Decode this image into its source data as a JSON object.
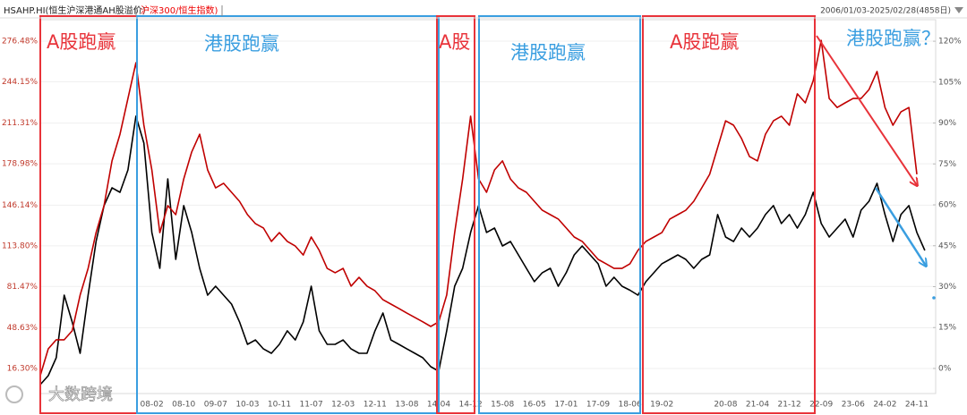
{
  "chart_data": {
    "type": "line",
    "date_range": "2006/01/03-2025/02/28(4858日)",
    "categories": [
      null,
      null,
      null,
      null,
      null,
      null,
      null,
      null,
      null,
      null,
      null,
      null,
      null,
      null,
      "08-02",
      null,
      null,
      null,
      "08-10",
      null,
      null,
      null,
      "09-07",
      null,
      null,
      null,
      "10-03",
      null,
      null,
      null,
      "10-11",
      null,
      null,
      null,
      "11-07",
      null,
      null,
      null,
      "12-03",
      null,
      null,
      null,
      "12-11",
      null,
      null,
      null,
      "13-08",
      null,
      null,
      null,
      "14-04",
      null,
      null,
      null,
      "14-12",
      null,
      null,
      null,
      "15-08",
      null,
      null,
      null,
      "16-05",
      null,
      null,
      null,
      "17-01",
      null,
      null,
      null,
      "17-09",
      null,
      null,
      null,
      "18-06",
      null,
      null,
      null,
      "19-02",
      null,
      null,
      null,
      null,
      null,
      null,
      null,
      "20-08",
      null,
      null,
      null,
      "21-04",
      null,
      null,
      null,
      "21-12",
      null,
      null,
      null,
      "22-09",
      null,
      null,
      null,
      "23-06",
      null,
      null,
      null,
      "24-02",
      null,
      null,
      null,
      "24-11",
      null
    ],
    "series": [
      {
        "name": "HSAHP.HI(恒生沪深港通AH股溢价)",
        "color": "#000000",
        "values": [
          3.5,
          10.6,
          24.8,
          74.6,
          53.3,
          28.4,
          74.6,
          117.2,
          145.7,
          159.9,
          156.3,
          174.1,
          216.8,
          195.4,
          124.4,
          95.9,
          167.0,
          103.0,
          145.7,
          124.4,
          95.9,
          74.6,
          81.7,
          74.6,
          67.5,
          53.3,
          35.5,
          39.0,
          31.9,
          28.4,
          35.5,
          46.2,
          39.0,
          53.3,
          81.7,
          46.2,
          35.5,
          35.5,
          39.0,
          31.9,
          28.4,
          28.4,
          46.2,
          60.4,
          39.0,
          35.5,
          31.9,
          28.4,
          24.8,
          17.7,
          14.2,
          46.2,
          81.7,
          95.9,
          124.4,
          145.7,
          124.4,
          127.9,
          113.7,
          117.2,
          106.6,
          95.9,
          85.3,
          92.4,
          95.9,
          81.7,
          92.4,
          106.6,
          113.7,
          106.6,
          99.5,
          81.7,
          88.8,
          81.7,
          78.5,
          74.6,
          85.3,
          92.4,
          99.5,
          103.0,
          106.6,
          103.0,
          95.9,
          103.0,
          106.6,
          138.6,
          120.8,
          117.2,
          127.9,
          120.8,
          127.9,
          138.6,
          145.7,
          131.5,
          138.6,
          127.9,
          138.6,
          156.3,
          131.5,
          120.8,
          127.9,
          135.0,
          120.8,
          142.1,
          149.2,
          163.5,
          138.6,
          117.2,
          138.6,
          145.7,
          124.4,
          110.1
        ]
      },
      {
        "name": "沪深300/恒生指数)",
        "color": "#c00000",
        "axis": "y2",
        "values": [
          -2.6,
          7.2,
          10.5,
          10.5,
          13.8,
          26.9,
          36.7,
          49.8,
          59.7,
          76.1,
          85.9,
          99.0,
          112.1,
          89.2,
          72.8,
          49.8,
          59.7,
          56.4,
          69.5,
          79.4,
          85.9,
          72.8,
          66.2,
          67.9,
          64.6,
          61.3,
          56.4,
          53.1,
          51.5,
          46.6,
          49.8,
          46.6,
          44.9,
          41.6,
          48.2,
          43.3,
          36.7,
          35.1,
          36.7,
          30.2,
          33.4,
          30.2,
          28.5,
          25.2,
          23.6,
          22.0,
          20.3,
          18.7,
          17.1,
          15.4,
          17.1,
          26.9,
          49.8,
          69.5,
          92.5,
          69.5,
          64.6,
          72.8,
          76.1,
          69.5,
          66.2,
          64.6,
          61.3,
          58.0,
          56.4,
          54.8,
          51.5,
          48.2,
          46.6,
          43.3,
          40.0,
          38.4,
          36.7,
          36.7,
          38.4,
          43.3,
          46.6,
          48.2,
          49.8,
          54.8,
          56.4,
          58.0,
          61.3,
          66.2,
          71.2,
          81.0,
          90.8,
          89.2,
          84.3,
          77.7,
          76.1,
          85.9,
          90.8,
          92.5,
          89.2,
          100.7,
          97.4,
          105.6,
          120.3,
          99.0,
          95.7,
          97.4,
          99.0,
          99.0,
          102.3,
          108.9,
          95.7,
          89.2,
          94.1,
          95.7,
          71.2,
          null
        ]
      }
    ],
    "ylim": [
      -3.6,
      293.5
    ],
    "yticks": [
      {
        "value": 276.48,
        "label": "276.48%"
      },
      {
        "value": 244.15,
        "label": "244.15%"
      },
      {
        "value": 211.31,
        "label": "211.31%"
      },
      {
        "value": 178.98,
        "label": "178.98%"
      },
      {
        "value": 146.14,
        "label": "146.14%"
      },
      {
        "value": 113.8,
        "label": "113.80%"
      },
      {
        "value": 81.47,
        "label": "81.47%"
      },
      {
        "value": 48.63,
        "label": "48.63%"
      },
      {
        "value": 16.3,
        "label": "16.30%"
      }
    ],
    "y2lim": [
      -9.2,
      127.9
    ],
    "y2ticks": [
      {
        "value": 120,
        "label": "120%"
      },
      {
        "value": 105,
        "label": "105%"
      },
      {
        "value": 90,
        "label": "90%"
      },
      {
        "value": 75,
        "label": "75%"
      },
      {
        "value": 60,
        "label": "60%"
      },
      {
        "value": 45,
        "label": "45%"
      },
      {
        "value": 30,
        "label": "30%"
      },
      {
        "value": 15,
        "label": "15%"
      },
      {
        "value": 0,
        "label": "0%"
      }
    ],
    "grid": true,
    "annotations": [
      {
        "text": "A股跑赢",
        "color": "#e8333a"
      },
      {
        "text": "港股跑赢",
        "color": "#3a9ee0"
      },
      {
        "text": "A股",
        "color": "#e8333a"
      },
      {
        "text": "港股跑赢",
        "color": "#3a9ee0"
      },
      {
        "text": "A股跑赢",
        "color": "#e8333a"
      },
      {
        "text": "港股跑赢？",
        "color": "#3a9ee0"
      }
    ],
    "watermark": "大数跨境"
  }
}
